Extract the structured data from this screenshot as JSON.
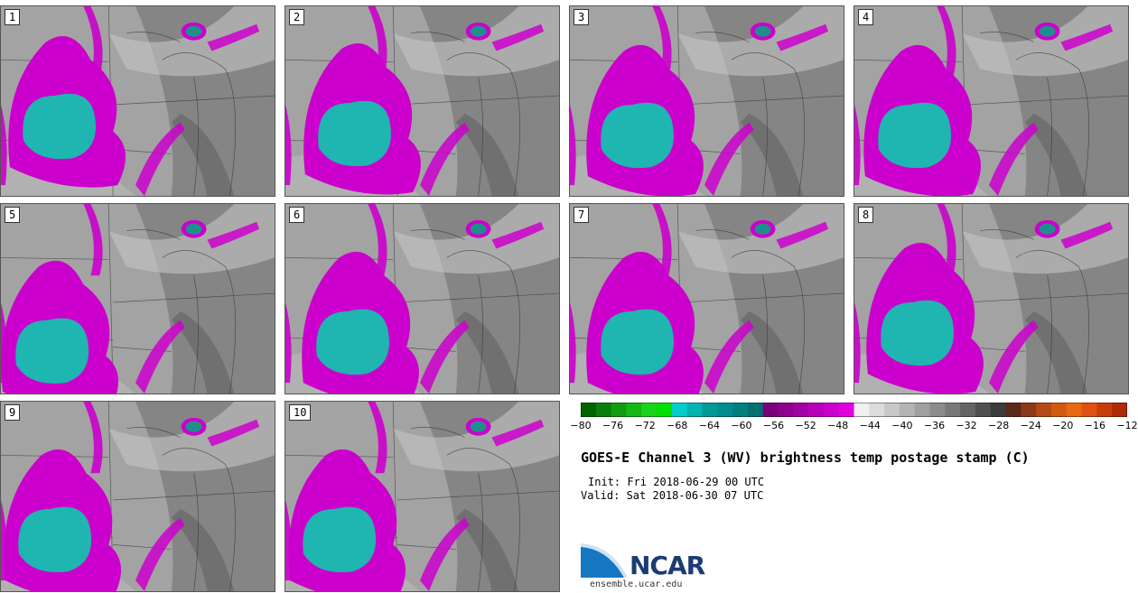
{
  "panels": [
    {
      "label": "1"
    },
    {
      "label": "2"
    },
    {
      "label": "3"
    },
    {
      "label": "4"
    },
    {
      "label": "5"
    },
    {
      "label": "6"
    },
    {
      "label": "7"
    },
    {
      "label": "8"
    },
    {
      "label": "9"
    },
    {
      "label": "10"
    }
  ],
  "colorbar": {
    "colors": [
      "#006400",
      "#0a7d0a",
      "#109c10",
      "#14b814",
      "#1ad41a",
      "#00e000",
      "#00cccc",
      "#00b3b3",
      "#009999",
      "#008c8c",
      "#007f7f",
      "#007070",
      "#7a007a",
      "#8f008f",
      "#a300a3",
      "#b800b8",
      "#cc00cc",
      "#e000e0",
      "#f0f0f0",
      "#dcdcdc",
      "#c8c8c8",
      "#b4b4b4",
      "#a0a0a0",
      "#8c8c8c",
      "#787878",
      "#646464",
      "#505050",
      "#3c3c3c",
      "#5a2a1a",
      "#8b3a1a",
      "#b44a14",
      "#d25a10",
      "#e86a10",
      "#e05010",
      "#c83c0c",
      "#b02a08"
    ],
    "ticks": [
      "−80",
      "−76",
      "−72",
      "−68",
      "−64",
      "−60",
      "−56",
      "−52",
      "−48",
      "−44",
      "−40",
      "−36",
      "−32",
      "−28",
      "−24",
      "−20",
      "−16",
      "−12"
    ]
  },
  "title": "GOES-E Channel 3 (WV) brightness temp postage stamp (C)",
  "init_line": "Init: Fri 2018-06-29 00 UTC",
  "valid_line": "Valid: Sat 2018-06-30 07 UTC",
  "logo": {
    "name": "NCAR",
    "url": "ensemble.ucar.edu"
  },
  "palette": {
    "magenta": "#cc00cc",
    "cyan": "#1fb5b0",
    "gray_dark": "#6e6e6e",
    "gray_light": "#c4c4c4"
  }
}
